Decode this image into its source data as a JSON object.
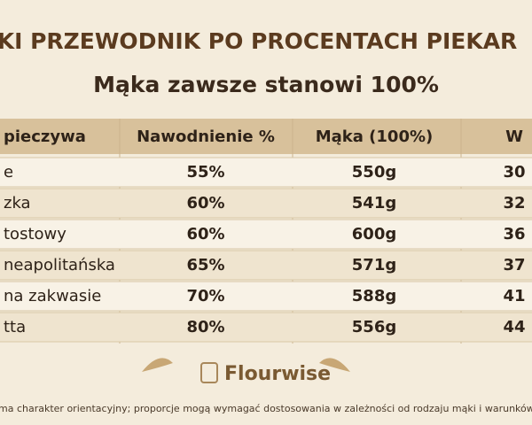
{
  "header": {
    "title": "KI PRZEWODNIK PO PROCENTACH PIEKAR",
    "subtitle": "Mąka zawsze stanowi 100%"
  },
  "table": {
    "columns": [
      "pieczywa",
      "Nawodnienie %",
      "Mąka (100%)",
      "W"
    ],
    "rows": [
      [
        "e",
        "55%",
        "550g",
        "30"
      ],
      [
        "zka",
        "60%",
        "541g",
        "32"
      ],
      [
        "tostowy",
        "60%",
        "600g",
        "36"
      ],
      [
        "neapolitańska",
        "65%",
        "571g",
        "37"
      ],
      [
        "na zakwasie",
        "70%",
        "588g",
        "41"
      ],
      [
        "tta",
        "80%",
        "556g",
        "44"
      ]
    ]
  },
  "brand": "Flourwise",
  "footnote": "ma charakter orientacyjny; proporcje mogą wymagać dostosowania w zależności od rodzaju mąki i warunków"
}
